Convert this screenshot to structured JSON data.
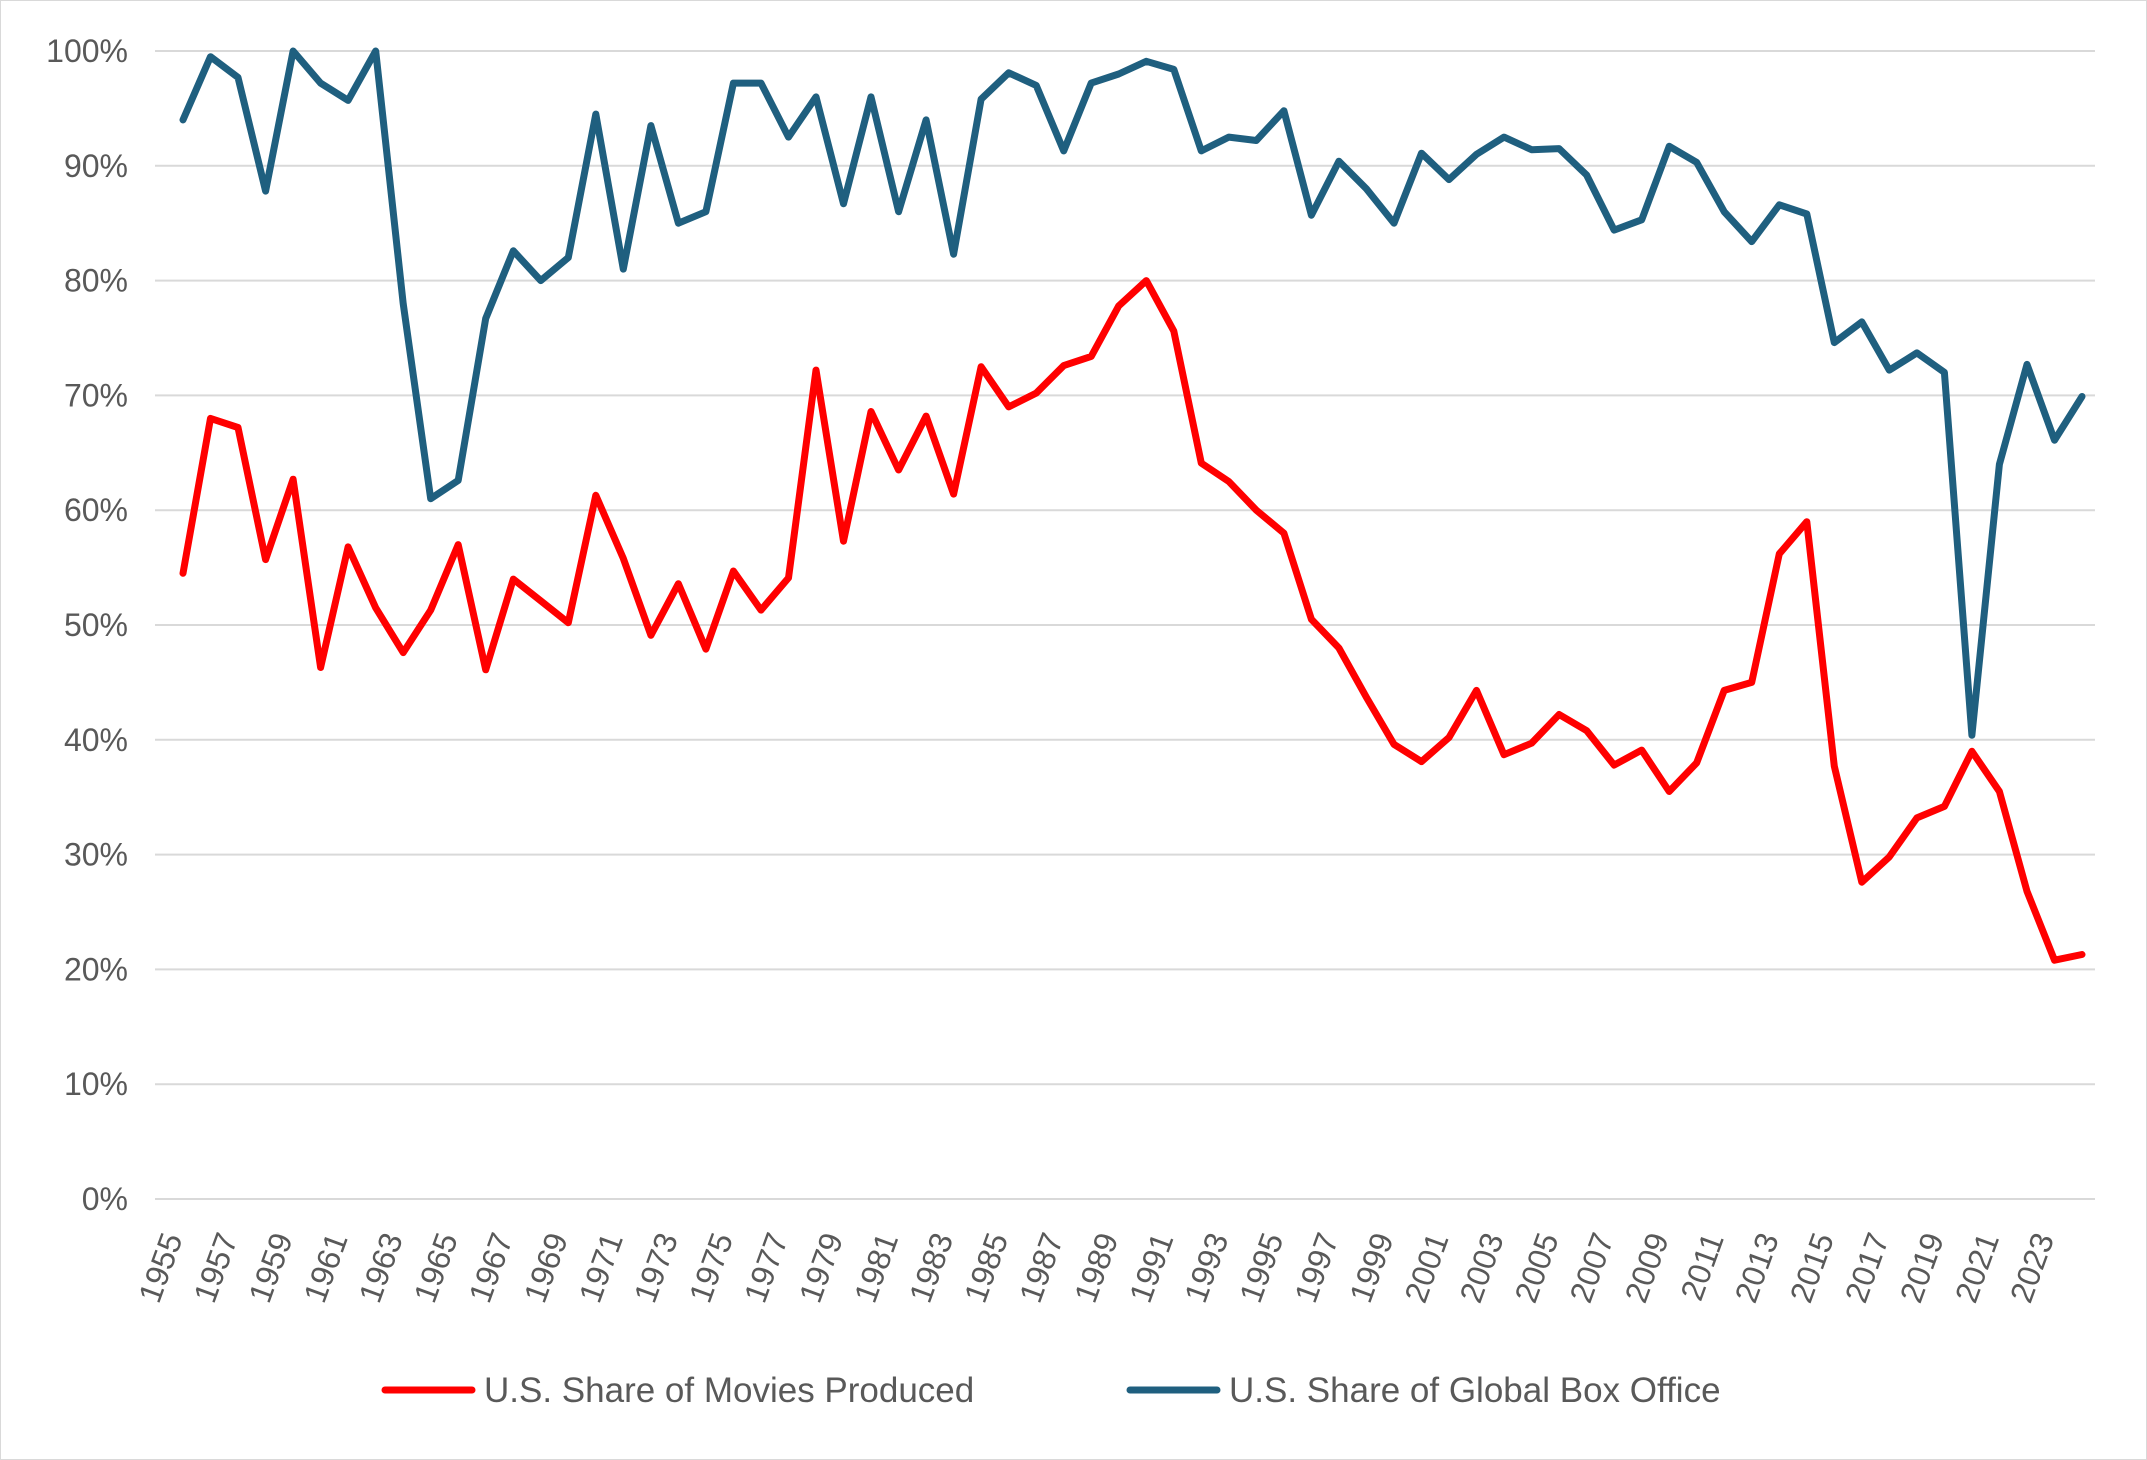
{
  "chart_data": {
    "type": "line",
    "title": "",
    "xlabel": "",
    "ylabel": "",
    "ylim": [
      0,
      1
    ],
    "ytick_labels": [
      "0%",
      "10%",
      "20%",
      "30%",
      "40%",
      "50%",
      "60%",
      "70%",
      "80%",
      "90%",
      "100%"
    ],
    "grid": true,
    "legend_position": "bottom",
    "x": [
      1955,
      1956,
      1957,
      1958,
      1959,
      1960,
      1961,
      1962,
      1963,
      1964,
      1965,
      1966,
      1967,
      1968,
      1969,
      1970,
      1971,
      1972,
      1973,
      1974,
      1975,
      1976,
      1977,
      1978,
      1979,
      1980,
      1981,
      1982,
      1983,
      1984,
      1985,
      1986,
      1987,
      1988,
      1989,
      1990,
      1991,
      1992,
      1993,
      1994,
      1995,
      1996,
      1997,
      1998,
      1999,
      2000,
      2001,
      2002,
      2003,
      2004,
      2005,
      2006,
      2007,
      2008,
      2009,
      2010,
      2011,
      2012,
      2013,
      2014,
      2015,
      2016,
      2017,
      2018,
      2019,
      2020,
      2021,
      2022,
      2023,
      2024
    ],
    "xtick_labels": [
      "1955",
      "1957",
      "1959",
      "1961",
      "1963",
      "1965",
      "1967",
      "1969",
      "1971",
      "1973",
      "1975",
      "1977",
      "1979",
      "1981",
      "1983",
      "1985",
      "1987",
      "1989",
      "1991",
      "1993",
      "1995",
      "1997",
      "1999",
      "2001",
      "2003",
      "2005",
      "2007",
      "2009",
      "2011",
      "2013",
      "2015",
      "2017",
      "2019",
      "2021",
      "2023"
    ],
    "series": [
      {
        "name": "U.S. Share of Movies Produced",
        "color": "#ff0000",
        "values": [
          0.545,
          0.68,
          0.672,
          0.557,
          0.627,
          0.463,
          0.568,
          0.515,
          0.476,
          0.513,
          0.57,
          0.461,
          0.54,
          0.521,
          0.502,
          0.613,
          0.558,
          0.491,
          0.536,
          0.479,
          0.547,
          0.513,
          0.541,
          0.722,
          0.573,
          0.686,
          0.635,
          0.682,
          0.614,
          0.725,
          0.69,
          0.702,
          0.726,
          0.734,
          0.778,
          0.8,
          0.756,
          0.641,
          0.625,
          0.6,
          0.58,
          0.505,
          0.48,
          0.437,
          0.396,
          0.381,
          0.402,
          0.443,
          0.387,
          0.397,
          0.422,
          0.408,
          0.378,
          0.391,
          0.355,
          0.38,
          0.443,
          0.45,
          0.562,
          0.59,
          0.377,
          0.276,
          0.298,
          0.332,
          0.342,
          0.39,
          0.355,
          0.268,
          0.208,
          0.213
        ]
      },
      {
        "name": "U.S. Share of Global Box Office",
        "color": "#1f5f7f",
        "values": [
          0.94,
          0.995,
          0.977,
          0.878,
          1.0,
          0.972,
          0.957,
          1.0,
          0.78,
          0.61,
          0.626,
          0.767,
          0.826,
          0.8,
          0.82,
          0.945,
          0.81,
          0.935,
          0.85,
          0.86,
          0.972,
          0.972,
          0.925,
          0.96,
          0.867,
          0.96,
          0.86,
          0.94,
          0.823,
          0.958,
          0.981,
          0.97,
          0.913,
          0.972,
          0.98,
          0.991,
          0.984,
          0.913,
          0.925,
          0.922,
          0.948,
          0.857,
          0.904,
          0.88,
          0.85,
          0.911,
          0.888,
          0.91,
          0.925,
          0.914,
          0.915,
          0.892,
          0.844,
          0.853,
          0.917,
          0.903,
          0.86,
          0.834,
          0.866,
          0.858,
          0.746,
          0.764,
          0.722,
          0.737,
          0.72,
          0.404,
          0.64,
          0.727,
          0.661,
          0.699
        ]
      }
    ]
  }
}
